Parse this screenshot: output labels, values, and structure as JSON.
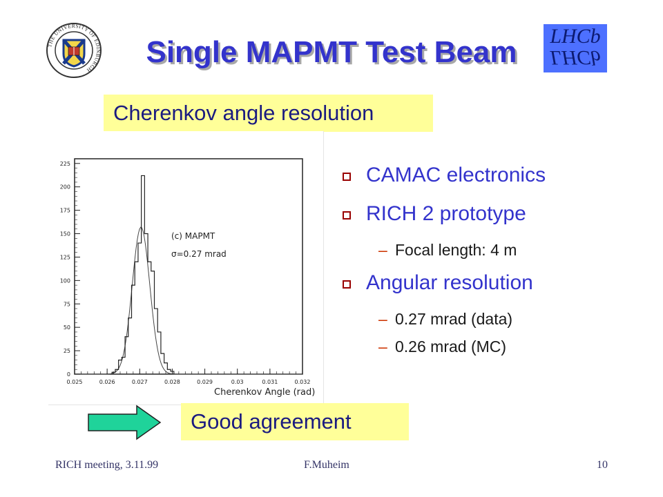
{
  "slide": {
    "title": "Single MAPMT Test Beam",
    "subtitle": "Cherenkov angle resolution",
    "conclusion": "Good agreement"
  },
  "logos": {
    "university_text": "THE UNIVERSITY OF EDINBURGH",
    "lhcb_text": "LHCb"
  },
  "bullets": [
    {
      "text": "CAMAC electronics",
      "subs": []
    },
    {
      "text": "RICH 2 prototype",
      "subs": [
        "Focal length: 4 m"
      ]
    },
    {
      "text": "Angular resolution",
      "subs": [
        "0.27 mrad (data)",
        "0.26 mrad (MC)"
      ]
    }
  ],
  "footer": {
    "left": "RICH meeting, 3.11.99",
    "center": "F.Muheim",
    "right": "10"
  },
  "colors": {
    "title": "#3333cc",
    "label_bg": "#ffff99",
    "arrow_fill": "#1fd39a",
    "bullet_mark": "#990000",
    "dash": "#cc3300"
  },
  "chart_data": {
    "type": "line",
    "title": "",
    "xlabel": "Cherenkov Angle (rad)",
    "ylabel": "",
    "xlim": [
      0.025,
      0.032
    ],
    "ylim": [
      0,
      230
    ],
    "x_ticks": [
      "0.025",
      "0.026",
      "0.027",
      "0.028",
      "0.029",
      "0.03",
      "0.031",
      "0.032"
    ],
    "x_tick_values": [
      0.025,
      0.026,
      0.027,
      0.028,
      0.029,
      0.03,
      0.031,
      0.032
    ],
    "y_ticks": [
      "0",
      "25",
      "50",
      "75",
      "100",
      "125",
      "150",
      "175",
      "200",
      "225"
    ],
    "y_tick_values": [
      0,
      25,
      50,
      75,
      100,
      125,
      150,
      175,
      200,
      225
    ],
    "annotations": [
      "(c) MAPMT",
      "σ=0.27 mrad"
    ],
    "series": [
      {
        "kind": "histogram",
        "bin_width": 0.0001,
        "x": [
          0.0262,
          0.0263,
          0.0264,
          0.0265,
          0.0266,
          0.0267,
          0.0268,
          0.0269,
          0.027,
          0.0271,
          0.0272,
          0.0273,
          0.0274,
          0.0275,
          0.0276,
          0.0277,
          0.0278,
          0.0279,
          0.028
        ],
        "y": [
          2,
          5,
          15,
          18,
          40,
          60,
          95,
          120,
          140,
          212,
          150,
          120,
          110,
          70,
          45,
          22,
          12,
          5,
          3
        ]
      },
      {
        "kind": "gaussian_fit",
        "mean": 0.02704,
        "sigma": 0.00027,
        "amplitude": 157
      }
    ]
  }
}
